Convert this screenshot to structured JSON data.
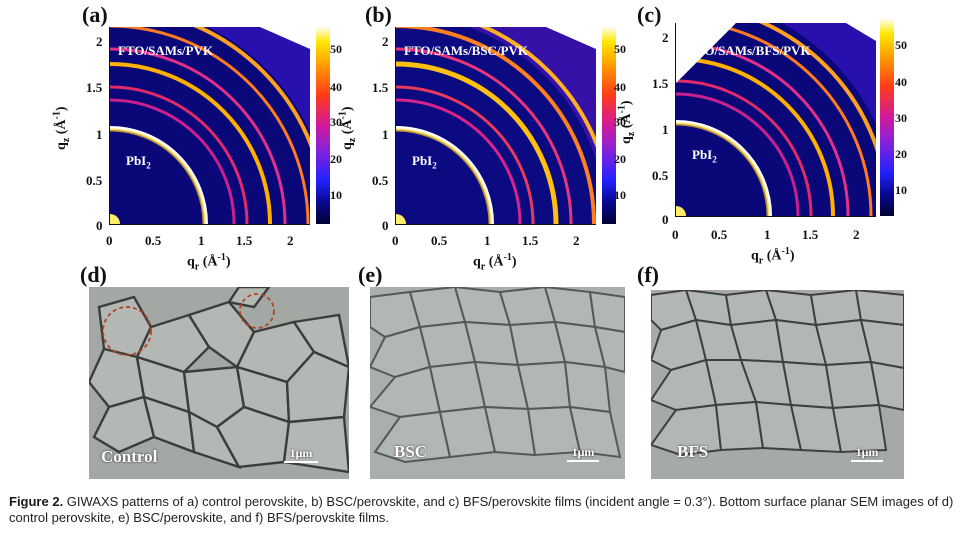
{
  "panels": {
    "a": {
      "label": "(a)",
      "sample": "FTO/SAMs/PVK",
      "peak": "PbI",
      "peak_sub": "2"
    },
    "b": {
      "label": "(b)",
      "sample": "FTO/SAMs/BSC/PVK",
      "peak": "PbI",
      "peak_sub": "2"
    },
    "c": {
      "label": "(c)",
      "sample": "FTO/SAMs/BFS/PVK",
      "peak": "PbI",
      "peak_sub": "2"
    },
    "d": {
      "label": "(d)",
      "sample": "Control",
      "scale": "1μm"
    },
    "e": {
      "label": "(e)",
      "sample": "BSC",
      "scale": "1μm"
    },
    "f": {
      "label": "(f)",
      "sample": "BFS",
      "scale": "1μm"
    }
  },
  "axes": {
    "x_ticks": [
      "0",
      "0.5",
      "1",
      "1.5",
      "2"
    ],
    "y_ticks": [
      "2",
      "1.5",
      "1",
      "0.5",
      "0"
    ],
    "x_title": "q",
    "x_title_sub": "r",
    "y_title": "q",
    "y_title_sub": "z",
    "unit": "(Å",
    "unit_sup": "-1",
    "unit_close": ")"
  },
  "colorbar": {
    "ticks_ab": [
      "50",
      "40",
      "30",
      "20",
      "10"
    ],
    "ticks_c": [
      "50",
      "40",
      "30",
      "20",
      "10"
    ],
    "colors": [
      "#000033",
      "#0a0a9a",
      "#2222ff",
      "#8a22d8",
      "#d21a9a",
      "#ff3a1a",
      "#ff9a00",
      "#ffe800",
      "#ffffff"
    ]
  },
  "caption": {
    "figure": "Figure 2.",
    "text": " GIWAXS patterns of a) control perovskite, b) BSC/perovskite, and c) BFS/perovskite films (incident angle = 0.3°). Bottom surface planar SEM images of d) control perovskite, e) BSC/perovskite, and f) BFS/perovskite films."
  }
}
